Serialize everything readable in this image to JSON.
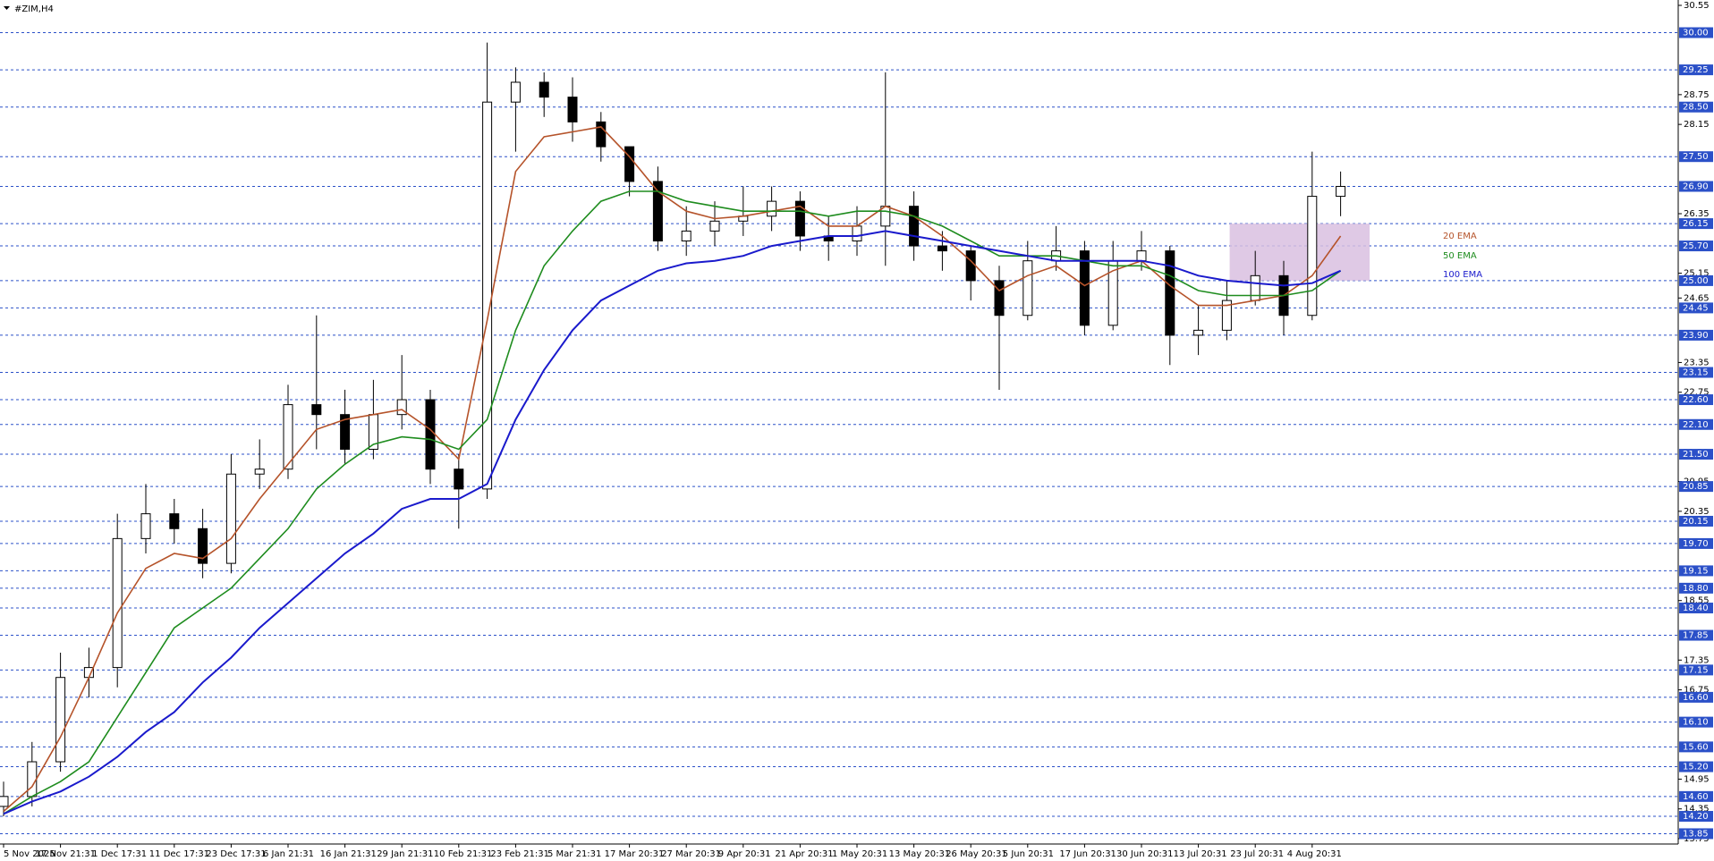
{
  "chart_data": {
    "type": "candlestick",
    "title": "#ZIM,H4",
    "x_labels": [
      "5 Nov 2025",
      "17 Nov 21:31",
      "1 Dec 17:31",
      "11 Dec 17:31",
      "23 Dec 17:31",
      "6 Jan 21:31",
      "16 Jan 21:31",
      "29 Jan 21:31",
      "10 Feb 21:31",
      "23 Feb 21:31",
      "5 Mar 21:31",
      "17 Mar 20:31",
      "27 Mar 20:31",
      "9 Apr 20:31",
      "21 Apr 20:31",
      "1 May 20:31",
      "13 May 20:31",
      "26 May 20:31",
      "5 Jun 20:31",
      "17 Jun 20:31",
      "30 Jun 20:31",
      "13 Jul 20:31",
      "23 Jul 20:31",
      "4 Aug 20:31"
    ],
    "open": [
      14.4,
      14.6,
      15.3,
      17.0,
      17.2,
      19.8,
      20.3,
      20.0,
      19.3,
      21.1,
      21.2,
      22.5,
      22.3,
      21.6,
      22.3,
      22.6,
      21.2,
      20.8,
      28.6,
      29.0,
      28.7,
      28.2,
      27.7,
      27.0,
      25.8,
      26.0,
      26.2,
      26.3,
      26.6,
      25.9,
      25.8,
      26.1,
      26.5,
      25.7,
      25.6,
      25.0,
      24.3,
      25.4,
      25.6,
      24.1,
      25.4,
      25.6,
      23.9,
      24.0,
      24.6,
      25.1,
      24.3,
      26.7
    ],
    "high": [
      14.9,
      15.7,
      17.5,
      17.6,
      20.3,
      20.9,
      20.6,
      20.4,
      21.5,
      21.8,
      22.9,
      24.3,
      22.8,
      23.0,
      23.5,
      22.8,
      21.5,
      29.8,
      29.3,
      29.2,
      29.1,
      28.4,
      27.6,
      27.3,
      26.5,
      26.6,
      26.9,
      26.9,
      26.8,
      26.3,
      26.5,
      29.2,
      26.8,
      26.0,
      25.7,
      25.3,
      25.8,
      26.1,
      25.8,
      25.8,
      26.0,
      25.7,
      24.5,
      25.0,
      25.6,
      25.4,
      27.6,
      27.2
    ],
    "low": [
      14.2,
      14.4,
      15.1,
      16.6,
      16.8,
      19.5,
      19.7,
      19.0,
      19.1,
      20.8,
      21.0,
      21.6,
      21.3,
      21.4,
      22.0,
      20.9,
      20.0,
      20.6,
      27.6,
      28.3,
      27.8,
      27.4,
      26.7,
      25.6,
      25.5,
      25.7,
      25.9,
      26.0,
      25.6,
      25.4,
      25.5,
      25.3,
      25.4,
      25.2,
      24.6,
      22.8,
      24.2,
      25.2,
      23.9,
      24.0,
      25.2,
      23.3,
      23.5,
      23.8,
      24.5,
      23.9,
      24.2,
      26.3
    ],
    "close": [
      14.6,
      15.3,
      17.0,
      17.2,
      19.8,
      20.3,
      20.0,
      19.3,
      21.1,
      21.2,
      22.5,
      22.3,
      21.6,
      22.3,
      22.6,
      21.2,
      20.8,
      28.6,
      29.0,
      28.7,
      28.2,
      27.7,
      27.0,
      25.8,
      26.0,
      26.2,
      26.3,
      26.6,
      25.9,
      25.8,
      26.1,
      26.5,
      25.7,
      25.6,
      25.0,
      24.3,
      25.4,
      25.6,
      24.1,
      25.4,
      25.6,
      23.9,
      24.0,
      24.6,
      25.1,
      24.3,
      26.7,
      26.9
    ],
    "up_color": "#ffffff",
    "down_color": "#000000",
    "series": [
      {
        "name": "20 EMA",
        "color": "#b5532a",
        "values": [
          14.3,
          14.8,
          15.8,
          17.0,
          18.3,
          19.2,
          19.5,
          19.4,
          19.8,
          20.6,
          21.3,
          22.0,
          22.2,
          22.3,
          22.4,
          22.0,
          21.4,
          24.2,
          27.2,
          27.9,
          28.0,
          28.1,
          27.5,
          26.8,
          26.4,
          26.25,
          26.3,
          26.4,
          26.5,
          26.1,
          26.1,
          26.5,
          26.3,
          25.9,
          25.4,
          24.8,
          25.1,
          25.3,
          24.9,
          25.2,
          25.4,
          24.9,
          24.5,
          24.5,
          24.6,
          24.7,
          25.1,
          25.9
        ]
      },
      {
        "name": "50 EMA",
        "color": "#1e8c1e",
        "values": [
          14.25,
          14.6,
          14.9,
          15.3,
          16.2,
          17.1,
          18.0,
          18.4,
          18.8,
          19.4,
          20.0,
          20.8,
          21.3,
          21.7,
          21.85,
          21.8,
          21.6,
          22.2,
          24.0,
          25.3,
          26.0,
          26.6,
          26.8,
          26.8,
          26.6,
          26.5,
          26.4,
          26.4,
          26.4,
          26.3,
          26.4,
          26.4,
          26.3,
          26.1,
          25.8,
          25.5,
          25.5,
          25.5,
          25.4,
          25.3,
          25.3,
          25.1,
          24.8,
          24.7,
          24.7,
          24.7,
          24.8,
          25.2
        ]
      },
      {
        "name": "100 EMA",
        "color": "#1a1acc",
        "values": [
          14.25,
          14.5,
          14.7,
          15.0,
          15.4,
          15.9,
          16.3,
          16.9,
          17.4,
          18.0,
          18.5,
          19.0,
          19.5,
          19.9,
          20.4,
          20.6,
          20.6,
          20.9,
          22.2,
          23.2,
          24.0,
          24.6,
          24.9,
          25.2,
          25.35,
          25.4,
          25.5,
          25.7,
          25.8,
          25.9,
          25.9,
          26.0,
          25.9,
          25.8,
          25.7,
          25.6,
          25.5,
          25.4,
          25.4,
          25.4,
          25.4,
          25.3,
          25.1,
          25.0,
          24.95,
          24.9,
          24.95,
          25.2
        ]
      }
    ],
    "ylim": [
      13.75,
      30.55
    ],
    "yticks": [
      30.55,
      28.75,
      28.15,
      26.35,
      25.15,
      24.65,
      23.35,
      22.75,
      20.95,
      20.35,
      18.55,
      17.35,
      16.75,
      14.95,
      14.35,
      13.75
    ],
    "levels": [
      {
        "value": 30,
        "label": "30.00"
      },
      29.25,
      {
        "value": 28.5,
        "label": "28.50"
      },
      {
        "value": 27.5,
        "label": "27.50"
      },
      {
        "value": 26.9,
        "label": "26.90"
      },
      26.15,
      {
        "value": 25.7,
        "label": "25.70"
      },
      {
        "value": 25,
        "label": "25.00"
      },
      24.45,
      {
        "value": 23.9,
        "label": "23.90"
      },
      23.15,
      {
        "value": 22.6,
        "label": "22.60"
      },
      {
        "value": 22.1,
        "label": "22.10"
      },
      {
        "value": 21.5,
        "label": "21.50"
      },
      20.85,
      20.15,
      {
        "value": 19.7,
        "label": "19.70"
      },
      19.15,
      {
        "value": 18.8,
        "label": "18.80"
      },
      {
        "value": 18.4,
        "label": "18.40"
      },
      17.85,
      17.15,
      {
        "value": 16.6,
        "label": "16.60"
      },
      {
        "value": 16.1,
        "label": "16.10"
      },
      {
        "value": 15.6,
        "label": "15.60"
      },
      {
        "value": 15.2,
        "label": "15.20"
      },
      {
        "value": 14.6,
        "label": "14.60"
      },
      {
        "value": 14.2,
        "label": "14.20"
      },
      13.85
    ],
    "level_color": "#2b50c8",
    "zone": {
      "top": 26.15,
      "bottom": 25.0,
      "color": "#d9bfe0"
    }
  }
}
